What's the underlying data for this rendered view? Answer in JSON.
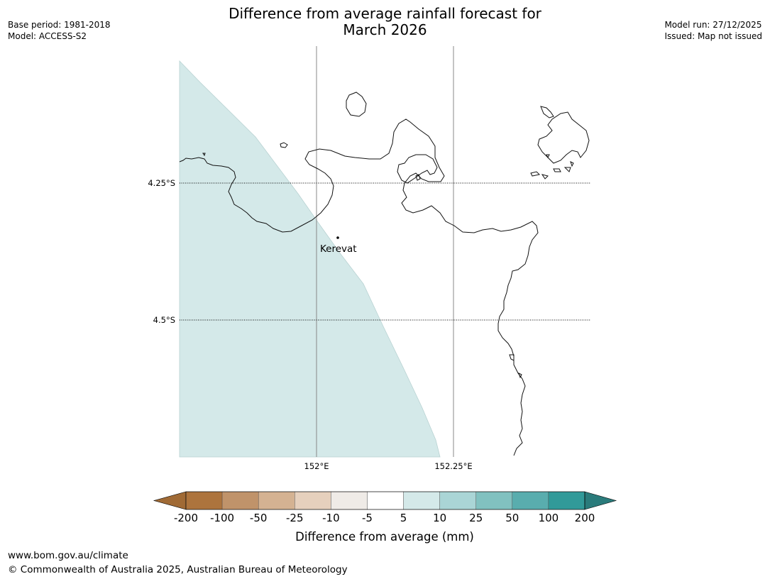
{
  "header": {
    "title_line1": "Difference from average rainfall forecast for",
    "title_line2": "March 2026",
    "base_period": "Base period: 1981-2018",
    "model": "Model: ACCESS-S2",
    "model_run": "Model run: 27/12/2025",
    "issued": "Issued: Map not issued"
  },
  "map": {
    "place_label": "Kerevat",
    "lat_labels": [
      "4.25°S",
      "4.5°S"
    ],
    "lon_labels": [
      "152°E",
      "152.25°E"
    ],
    "shaded_category": "5 to 10",
    "land_fill": "#ffffff",
    "coastline_color": "#000000"
  },
  "legend": {
    "title": "Difference from average (mm)",
    "ticks": [
      "-200",
      "-100",
      "-50",
      "-25",
      "-10",
      "-5",
      "5",
      "10",
      "25",
      "50",
      "100",
      "200"
    ],
    "colors": [
      "#a06a35",
      "#ad743d",
      "#c0936a",
      "#d4b292",
      "#e6d0bd",
      "#efebe7",
      "#ffffff",
      "#d4e9e9",
      "#aad5d6",
      "#81c1c0",
      "#59adae",
      "#319a99",
      "#2a7b7b"
    ]
  },
  "footer": {
    "url": "www.bom.gov.au/climate",
    "copyright": "© Commonwealth of Australia 2025, Australian Bureau of Meteorology"
  }
}
